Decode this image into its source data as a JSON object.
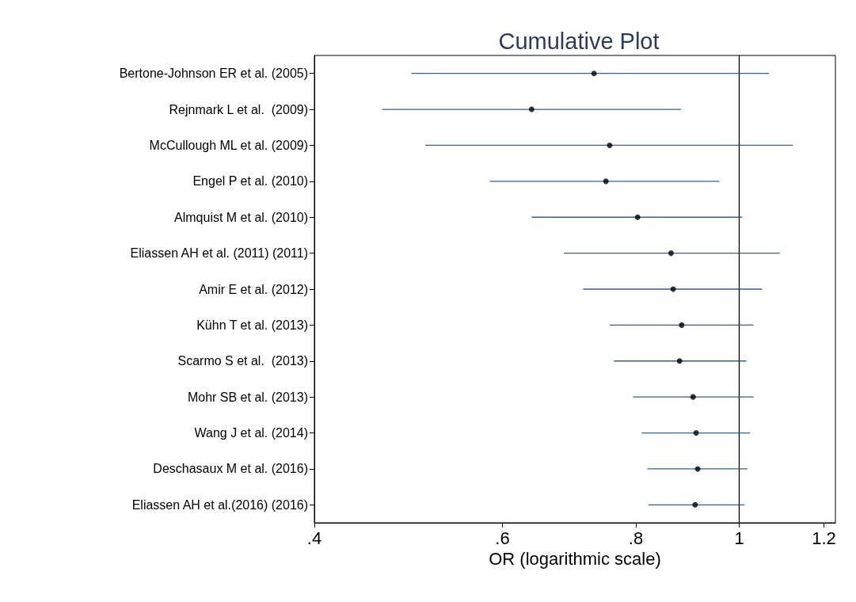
{
  "chart_data": {
    "type": "scatter",
    "title": "Cumulative Plot",
    "xlabel": "OR (logarithmic scale)",
    "orientation": "horizontal",
    "log": "x",
    "grid": false,
    "marker": "circle",
    "categories": [
      "Bertone-Johnson ER et al. (2005)",
      "Rejnmark L et al.  (2009)",
      "McCullough ML et al. (2009)",
      "Engel P et al. (2010)",
      "Almquist M et al. (2010)",
      "Eliassen AH et al. (2011) (2011)",
      "Amir E et al. (2012)",
      "Kühn T et al. (2013)",
      "Scarmo S et al.  (2013)",
      "Mohr SB et al. (2013)",
      "Wang J et al. (2014)",
      "Deschasaux M et al. (2016)",
      "Eliassen AH et al.(2016) (2016)"
    ],
    "series": [
      {
        "color": "#000000",
        "values": [
          0.731,
          0.639,
          0.756,
          0.75,
          0.803,
          0.863,
          0.867,
          0.883,
          0.879,
          0.905,
          0.911,
          0.914,
          0.909
        ],
        "errors": [
          [
            0.493,
            1.066
          ],
          [
            0.463,
            0.882
          ],
          [
            0.508,
            1.122
          ],
          [
            0.584,
            0.958
          ],
          [
            0.639,
            1.006
          ],
          [
            0.685,
            1.091
          ],
          [
            0.714,
            1.05
          ],
          [
            0.756,
            1.031
          ],
          [
            0.763,
            1.015
          ],
          [
            0.795,
            1.031
          ],
          [
            0.81,
            1.023
          ],
          [
            0.82,
            1.018
          ],
          [
            0.822,
            1.011
          ]
        ]
      }
    ],
    "xlim": [
      0.4,
      1.23
    ],
    "xticks": [
      {
        "value": 0.4,
        "label": ".4"
      },
      {
        "value": 0.6,
        "label": ".6"
      },
      {
        "value": 0.8,
        "label": ".8"
      },
      1,
      1.2
    ],
    "ref_lines": [
      {
        "axis": "x",
        "value": 1,
        "color": "#000000"
      }
    ]
  }
}
